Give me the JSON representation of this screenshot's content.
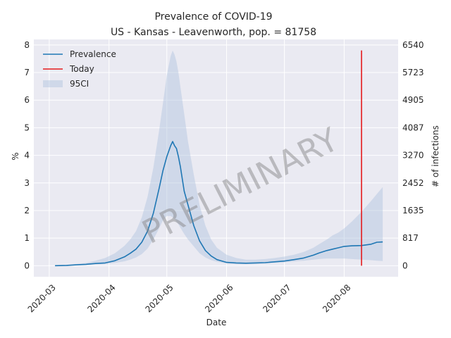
{
  "chart_data": {
    "type": "line",
    "title": "Prevalence of COVID-19",
    "subtitle": "US - Kansas - Leavenworth, pop. = 81758",
    "xlabel": "Date",
    "ylabel": "%",
    "ylabel_right": "# of infections",
    "ylim": [
      -0.4,
      8.2
    ],
    "grid": true,
    "legend_position": "top-left",
    "watermark": "PRELIMINARY",
    "x_ticks": [
      "2020-03",
      "2020-04",
      "2020-05",
      "2020-06",
      "2020-07",
      "2020-08"
    ],
    "y_ticks": [
      "0",
      "1",
      "2",
      "3",
      "4",
      "5",
      "6",
      "7",
      "8"
    ],
    "y_ticks_right": [
      "0",
      "817",
      "1635",
      "2452",
      "3270",
      "4087",
      "4905",
      "5723",
      "6540"
    ],
    "x_range": [
      "2020-02-22",
      "2020-08-29"
    ],
    "today": "2020-08-10",
    "colors": {
      "prevalence": "#1f77b4",
      "today": "#e41a1c",
      "ci": "#b0c4de",
      "background": "#eaeaf2",
      "grid": "#ffffff"
    },
    "legend": [
      {
        "label": "Prevalence",
        "kind": "line",
        "color": "#1f77b4"
      },
      {
        "label": "Today",
        "kind": "line",
        "color": "#e41a1c"
      },
      {
        "label": "95CI",
        "kind": "patch",
        "color": "#b0c4de"
      }
    ],
    "series": [
      {
        "name": "Prevalence",
        "x": [
          "2020-03-04",
          "2020-03-10",
          "2020-03-15",
          "2020-03-20",
          "2020-03-25",
          "2020-03-30",
          "2020-04-04",
          "2020-04-09",
          "2020-04-12",
          "2020-04-15",
          "2020-04-18",
          "2020-04-21",
          "2020-04-24",
          "2020-04-27",
          "2020-04-29",
          "2020-05-01",
          "2020-05-03",
          "2020-05-04",
          "2020-05-05",
          "2020-05-06",
          "2020-05-07",
          "2020-05-08",
          "2020-05-10",
          "2020-05-12",
          "2020-05-15",
          "2020-05-18",
          "2020-05-21",
          "2020-05-24",
          "2020-05-27",
          "2020-06-01",
          "2020-06-06",
          "2020-06-11",
          "2020-06-16",
          "2020-06-21",
          "2020-06-26",
          "2020-07-01",
          "2020-07-06",
          "2020-07-11",
          "2020-07-16",
          "2020-07-19",
          "2020-07-23",
          "2020-07-26",
          "2020-07-29",
          "2020-08-01",
          "2020-08-05",
          "2020-08-10",
          "2020-08-15",
          "2020-08-18",
          "2020-08-21"
        ],
        "y": [
          0.0,
          0.01,
          0.03,
          0.05,
          0.08,
          0.1,
          0.18,
          0.32,
          0.45,
          0.6,
          0.85,
          1.25,
          1.9,
          2.8,
          3.45,
          3.95,
          4.35,
          4.5,
          4.35,
          4.25,
          3.95,
          3.6,
          2.7,
          2.2,
          1.45,
          0.9,
          0.55,
          0.35,
          0.22,
          0.12,
          0.1,
          0.09,
          0.1,
          0.11,
          0.14,
          0.17,
          0.22,
          0.28,
          0.38,
          0.46,
          0.55,
          0.6,
          0.65,
          0.7,
          0.72,
          0.73,
          0.78,
          0.85,
          0.86
        ]
      },
      {
        "name": "95CI",
        "x": [
          "2020-03-04",
          "2020-03-10",
          "2020-03-15",
          "2020-03-20",
          "2020-03-25",
          "2020-03-30",
          "2020-04-04",
          "2020-04-09",
          "2020-04-12",
          "2020-04-15",
          "2020-04-18",
          "2020-04-21",
          "2020-04-24",
          "2020-04-27",
          "2020-04-29",
          "2020-05-01",
          "2020-05-03",
          "2020-05-04",
          "2020-05-05",
          "2020-05-06",
          "2020-05-07",
          "2020-05-08",
          "2020-05-10",
          "2020-05-12",
          "2020-05-15",
          "2020-05-18",
          "2020-05-21",
          "2020-05-24",
          "2020-05-27",
          "2020-06-01",
          "2020-06-06",
          "2020-06-11",
          "2020-06-16",
          "2020-06-21",
          "2020-06-26",
          "2020-07-01",
          "2020-07-06",
          "2020-07-11",
          "2020-07-16",
          "2020-07-19",
          "2020-07-23",
          "2020-07-26",
          "2020-07-29",
          "2020-08-01",
          "2020-08-05",
          "2020-08-10",
          "2020-08-15",
          "2020-08-18",
          "2020-08-21"
        ],
        "lower": [
          0.0,
          0.01,
          0.02,
          0.03,
          0.05,
          0.06,
          0.1,
          0.16,
          0.22,
          0.3,
          0.42,
          0.62,
          0.95,
          1.35,
          1.65,
          1.8,
          1.8,
          1.75,
          1.7,
          1.6,
          1.5,
          1.38,
          1.15,
          0.95,
          0.7,
          0.45,
          0.3,
          0.2,
          0.14,
          0.08,
          0.06,
          0.06,
          0.07,
          0.08,
          0.1,
          0.12,
          0.15,
          0.18,
          0.22,
          0.24,
          0.26,
          0.26,
          0.26,
          0.26,
          0.24,
          0.22,
          0.2,
          0.18,
          0.17
        ],
        "upper": [
          0.01,
          0.03,
          0.06,
          0.1,
          0.18,
          0.28,
          0.45,
          0.72,
          0.95,
          1.25,
          1.75,
          2.5,
          3.55,
          4.9,
          5.9,
          6.9,
          7.6,
          7.8,
          7.65,
          7.4,
          7.0,
          6.5,
          5.5,
          4.5,
          3.3,
          2.2,
          1.45,
          0.95,
          0.65,
          0.4,
          0.28,
          0.22,
          0.22,
          0.24,
          0.28,
          0.33,
          0.4,
          0.5,
          0.65,
          0.78,
          0.95,
          1.1,
          1.2,
          1.35,
          1.6,
          1.95,
          2.35,
          2.6,
          2.85
        ]
      }
    ]
  }
}
